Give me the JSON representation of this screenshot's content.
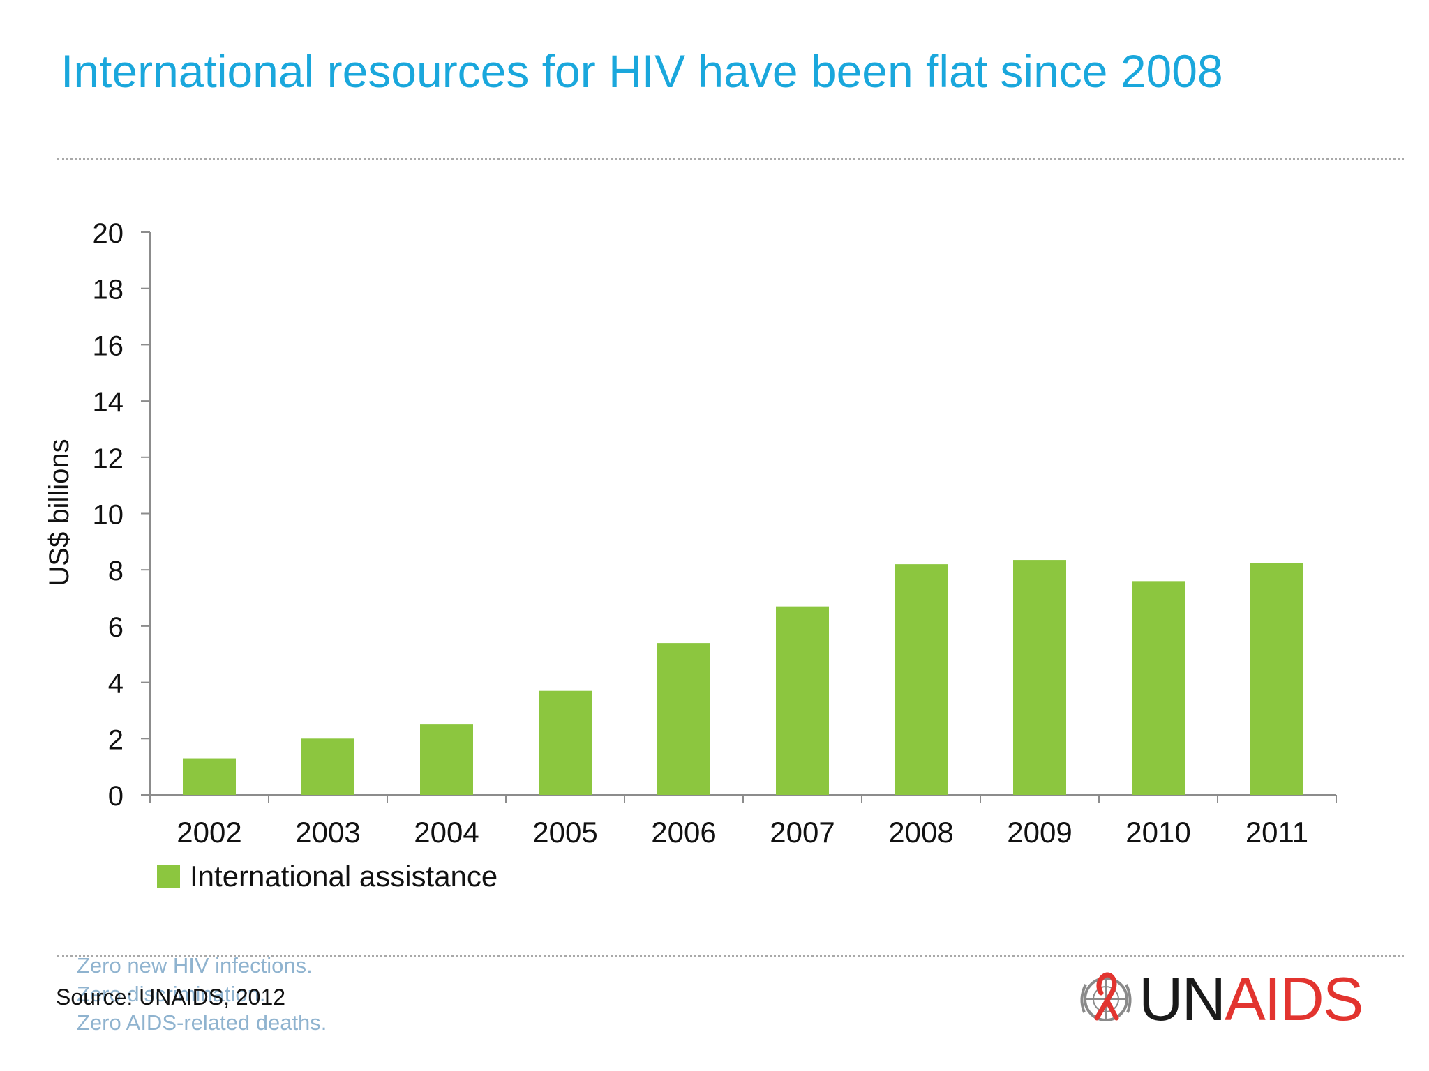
{
  "title": "International resources for HIV have been flat since 2008",
  "chart_data": {
    "type": "bar",
    "categories": [
      "2002",
      "2003",
      "2004",
      "2005",
      "2006",
      "2007",
      "2008",
      "2009",
      "2010",
      "2011"
    ],
    "series": [
      {
        "name": "International assistance",
        "values": [
          1.3,
          2.0,
          2.5,
          3.7,
          5.4,
          6.7,
          8.2,
          8.35,
          7.6,
          8.25
        ],
        "color": "#8cc63f"
      }
    ],
    "ylabel": "US$ billions",
    "xlabel": "",
    "ylim": [
      0,
      20
    ],
    "yticks": [
      0,
      2,
      4,
      6,
      8,
      10,
      12,
      14,
      16,
      18,
      20
    ],
    "grid": false,
    "legend": "bottom-left"
  },
  "footer": {
    "tagline": [
      "Zero new HIV infections.",
      "Zero discrimination.",
      "Zero AIDS-related deaths."
    ],
    "source": "Source: UNAIDS, 2012",
    "logo": {
      "prefix": "UN",
      "suffix": "AIDS",
      "icon": "un-emblem-red-ribbon-icon"
    }
  }
}
